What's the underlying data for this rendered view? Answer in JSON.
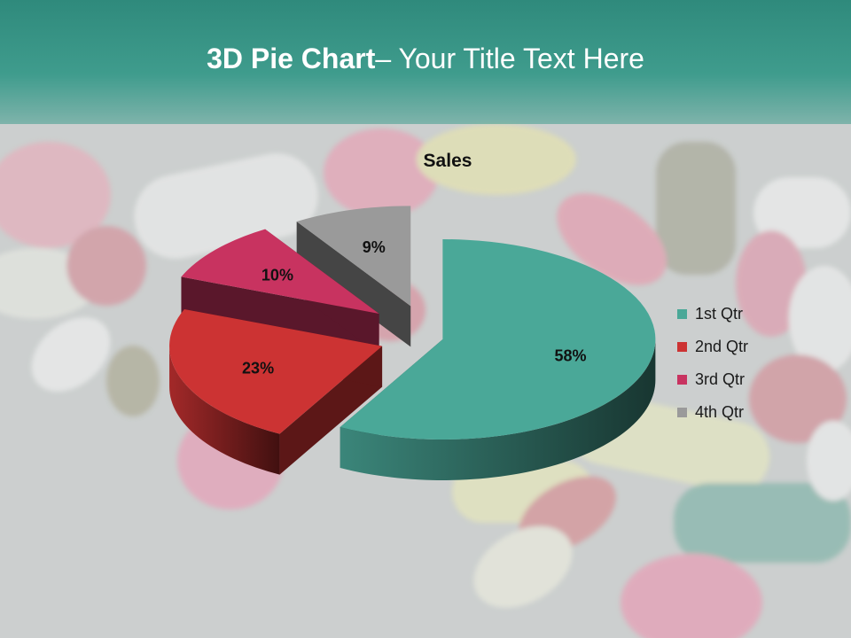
{
  "slide": {
    "title_bold": "3D Pie Chart",
    "title_rest": "– Your Title Text Here"
  },
  "colors": {
    "header": "#3f9c8d",
    "series": [
      "#4aa898",
      "#cc3333",
      "#c83360",
      "#9a9a9a"
    ]
  },
  "chart_data": {
    "type": "pie",
    "title": "Sales",
    "categories": [
      "1st Qtr",
      "2nd Qtr",
      "3rd Qtr",
      "4th Qtr"
    ],
    "values": [
      58,
      23,
      10,
      9
    ],
    "data_labels": [
      "58%",
      "23%",
      "10%",
      "9%"
    ],
    "exploded": true,
    "three_d": true,
    "legend_position": "right"
  }
}
